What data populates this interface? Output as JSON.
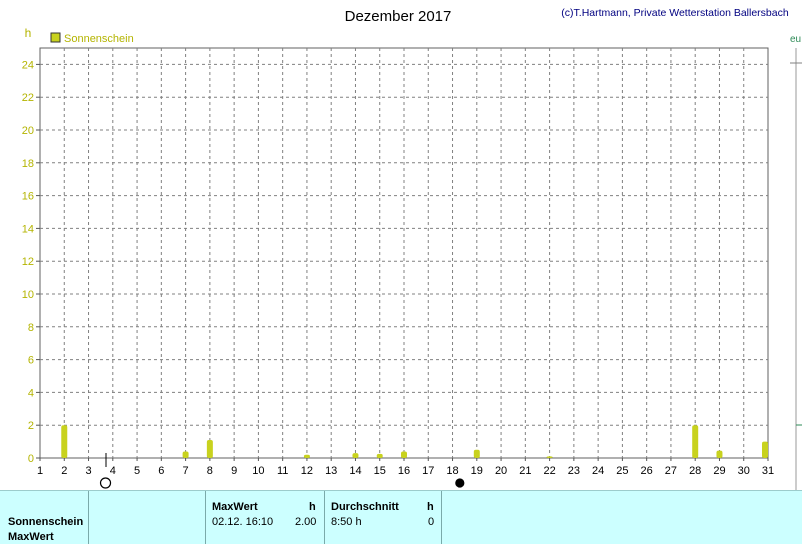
{
  "header": {
    "title": "Dezember 2017",
    "credit": "(c)T.Hartmann, Private Wetterstation Ballersbach",
    "right_edge_text": "eu"
  },
  "colors": {
    "series": "#c8d21e",
    "axis_label": "#b4b400",
    "grid": "#808080",
    "credit": "#000080",
    "panel_bg": "#ccffff"
  },
  "moon_phases": [
    {
      "day": 3.7,
      "phase": "full-moon",
      "icon": "empty-circle-icon"
    },
    {
      "day": 18.3,
      "phase": "new-moon",
      "icon": "filled-circle-icon"
    }
  ],
  "chart_data": {
    "type": "bar",
    "title": "Dezember 2017",
    "ylabel": "h",
    "xlim": [
      1,
      31
    ],
    "ylim": [
      0,
      25
    ],
    "y_ticks": [
      0,
      2,
      4,
      6,
      8,
      10,
      12,
      14,
      16,
      18,
      20,
      22,
      24
    ],
    "x_ticks": [
      1,
      2,
      3,
      4,
      5,
      6,
      7,
      8,
      9,
      10,
      11,
      12,
      13,
      14,
      15,
      16,
      17,
      18,
      19,
      20,
      21,
      22,
      23,
      24,
      25,
      26,
      27,
      28,
      29,
      30,
      31
    ],
    "grid": true,
    "legend_position": "top-left",
    "series": [
      {
        "name": "Sonnenschein",
        "x": [
          2,
          7,
          8,
          12,
          14,
          15,
          16,
          19,
          22,
          28,
          29,
          31
        ],
        "values": [
          2.0,
          0.4,
          1.1,
          0.2,
          0.3,
          0.25,
          0.4,
          0.5,
          0.1,
          2.0,
          0.45,
          1.0
        ]
      }
    ]
  },
  "panel": {
    "row_labels": [
      "Sonnenschein",
      "MaxWert"
    ],
    "maxwert": {
      "header": "MaxWert",
      "unit": "h",
      "date": "02.12.  16:10",
      "value": "2.00"
    },
    "durchschnitt": {
      "header": "Durchschnitt",
      "unit": "h",
      "value": "8:50 h",
      "count": "0"
    }
  }
}
